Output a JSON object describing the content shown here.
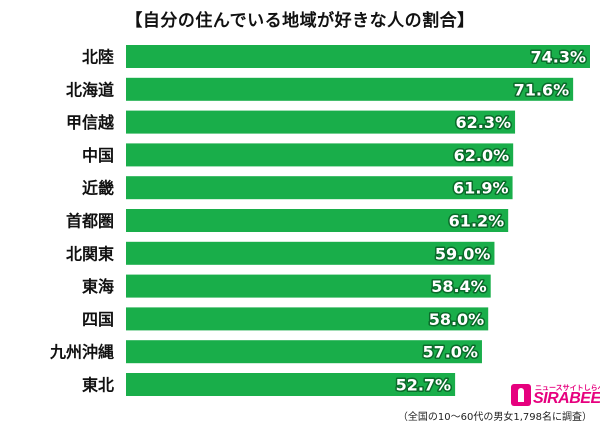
{
  "chart_data": {
    "type": "bar",
    "orientation": "horizontal",
    "title": "【自分の住んでいる地域が好きな人の割合】",
    "categories": [
      "北陸",
      "北海道",
      "甲信越",
      "中国",
      "近畿",
      "首都圏",
      "北関東",
      "東海",
      "四国",
      "九州沖縄",
      "東北"
    ],
    "values": [
      74.3,
      71.6,
      62.3,
      62.0,
      61.9,
      61.2,
      59.0,
      58.4,
      58.0,
      57.0,
      52.7
    ],
    "value_labels": [
      "74.3%",
      "71.6%",
      "62.3%",
      "62.0%",
      "61.9%",
      "61.2%",
      "59.0%",
      "58.4%",
      "58.0%",
      "57.0%",
      "52.7%"
    ],
    "unit": "%",
    "xlim": [
      0,
      74.3
    ],
    "grid": false,
    "bar_color": "#19ae4a",
    "footnote": "（全国の10〜60代の男女1,798名に調査）"
  },
  "logo": {
    "tagline": "ニュースサイトしらべぇ",
    "text": "SIRABEE",
    "color": "#e6007e"
  }
}
